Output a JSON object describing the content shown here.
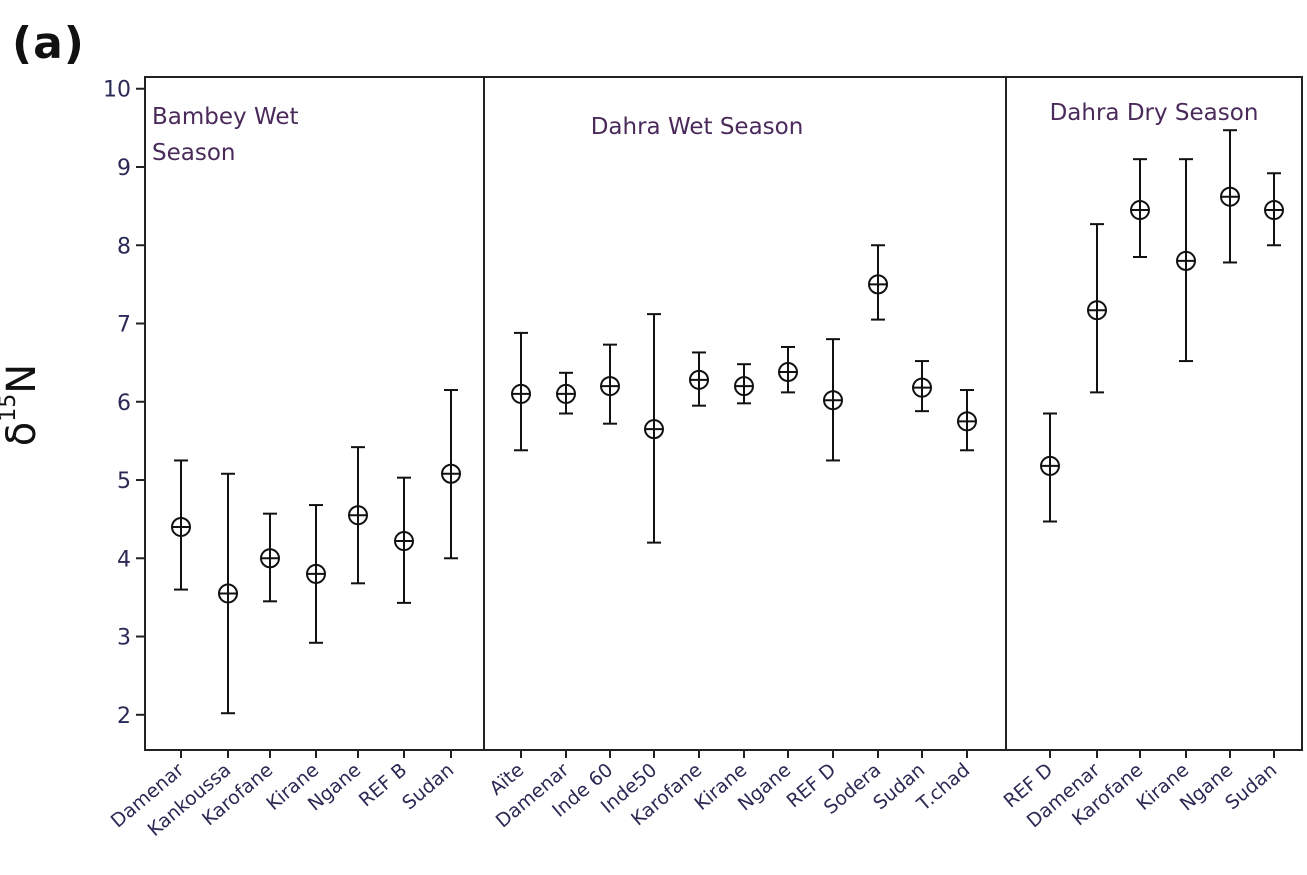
{
  "panel_label": "(a)",
  "colors": {
    "axis": "#222222",
    "marker": "#111111",
    "label_text": "#2a2a55",
    "group_text": "#4a2a5a"
  },
  "chart_data": {
    "type": "scatter",
    "title": "",
    "xlabel": "",
    "ylabel_main": "δ",
    "ylabel_sup": "15",
    "ylabel_tail": "N",
    "ylim": [
      1.55,
      10.15
    ],
    "yticks": [
      2,
      3,
      4,
      5,
      6,
      7,
      8,
      9,
      10
    ],
    "grid": false,
    "marker": "circle-cross",
    "error_bars": true,
    "groups": [
      {
        "name": "Bambey Wet Season",
        "label_lines": [
          "Bambey Wet",
          "Season"
        ],
        "points": [
          {
            "category": "Damenar",
            "y": 4.4,
            "low": 3.6,
            "high": 5.25
          },
          {
            "category": "Kankoussa",
            "y": 3.55,
            "low": 2.02,
            "high": 5.08
          },
          {
            "category": "Karofane",
            "y": 4.0,
            "low": 3.45,
            "high": 4.57
          },
          {
            "category": "Kirane",
            "y": 3.8,
            "low": 2.92,
            "high": 4.68
          },
          {
            "category": "Ngane",
            "y": 4.55,
            "low": 3.68,
            "high": 5.42
          },
          {
            "category": "REF B",
            "y": 4.22,
            "low": 3.43,
            "high": 5.03
          },
          {
            "category": "Sudan",
            "y": 5.08,
            "low": 4.0,
            "high": 6.15
          }
        ]
      },
      {
        "name": "Dahra Wet Season",
        "label_lines": [
          "Dahra Wet Season"
        ],
        "points": [
          {
            "category": "Aïte",
            "y": 6.1,
            "low": 5.38,
            "high": 6.88
          },
          {
            "category": "Damenar",
            "y": 6.1,
            "low": 5.85,
            "high": 6.37
          },
          {
            "category": "Inde 60",
            "y": 6.2,
            "low": 5.72,
            "high": 6.73
          },
          {
            "category": "Inde50",
            "y": 5.65,
            "low": 4.2,
            "high": 7.12
          },
          {
            "category": "Karofane",
            "y": 6.28,
            "low": 5.95,
            "high": 6.63
          },
          {
            "category": "Kirane",
            "y": 6.2,
            "low": 5.98,
            "high": 6.48
          },
          {
            "category": "Ngane",
            "y": 6.38,
            "low": 6.12,
            "high": 6.7
          },
          {
            "category": "REF D",
            "y": 6.02,
            "low": 5.25,
            "high": 6.8
          },
          {
            "category": "Sodera",
            "y": 7.5,
            "low": 7.05,
            "high": 8.0
          },
          {
            "category": "Sudan",
            "y": 6.18,
            "low": 5.88,
            "high": 6.52
          },
          {
            "category": "T.chad",
            "y": 5.75,
            "low": 5.38,
            "high": 6.15
          }
        ]
      },
      {
        "name": "Dahra Dry Season",
        "label_lines": [
          "Dahra Dry Season"
        ],
        "points": [
          {
            "category": "REF D",
            "y": 5.18,
            "low": 4.47,
            "high": 5.85
          },
          {
            "category": "Damenar",
            "y": 7.17,
            "low": 6.12,
            "high": 8.27
          },
          {
            "category": "Karofane",
            "y": 8.45,
            "low": 7.85,
            "high": 9.1
          },
          {
            "category": "Kirane",
            "y": 7.8,
            "low": 6.52,
            "high": 9.1
          },
          {
            "category": "Ngane",
            "y": 8.62,
            "low": 7.78,
            "high": 9.47
          },
          {
            "category": "Sudan",
            "y": 8.45,
            "low": 8.0,
            "high": 8.92
          }
        ]
      }
    ]
  }
}
